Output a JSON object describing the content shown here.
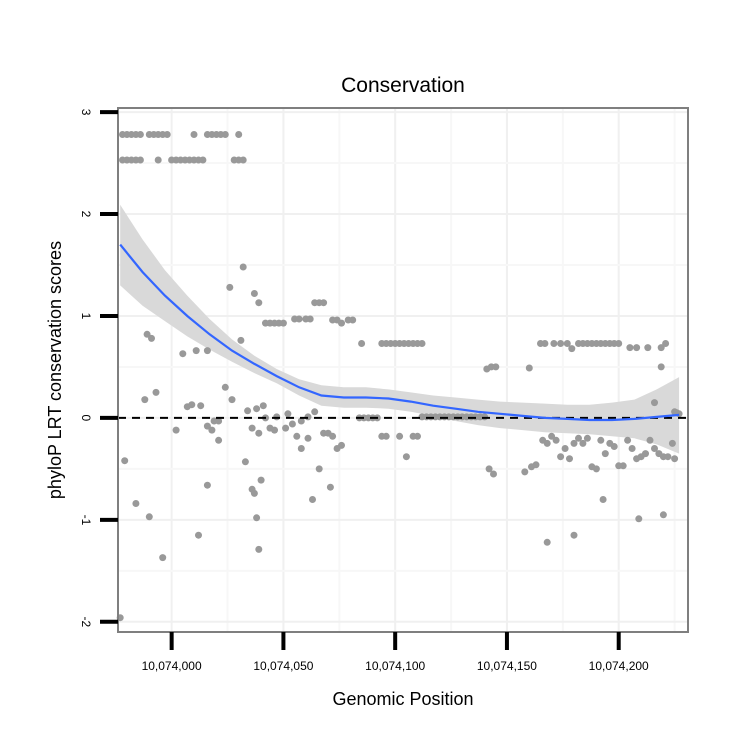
{
  "chart_data": {
    "type": "scatter",
    "title": "Conservation",
    "xlabel": "Genomic Position",
    "ylabel": "phyloP LRT conservation scores",
    "xlim": [
      10073976,
      10074231
    ],
    "ylim": [
      -2.1,
      3.04
    ],
    "x_ticks": [
      10074000,
      10074050,
      10074100,
      10074150,
      10074200
    ],
    "x_tick_labels": [
      "10,074,000",
      "10,074,050",
      "10,074,100",
      "10,074,150",
      "10,074,200"
    ],
    "y_ticks": [
      -2,
      -1,
      0,
      1,
      2,
      3
    ],
    "y_tick_labels": [
      "-2",
      "-1",
      "0",
      "1",
      "2",
      "3"
    ],
    "reference_line_y": 0,
    "point_color": "#999999",
    "smooth_color": "#3366ff",
    "ribbon_color": "#d9d9d9",
    "points": [
      [
        10073978,
        2.78
      ],
      [
        10073980,
        2.78
      ],
      [
        10073982,
        2.78
      ],
      [
        10073984,
        2.78
      ],
      [
        10073986,
        2.78
      ],
      [
        10073990,
        2.78
      ],
      [
        10073992,
        2.78
      ],
      [
        10073994,
        2.78
      ],
      [
        10073996,
        2.78
      ],
      [
        10073998,
        2.78
      ],
      [
        10074010,
        2.78
      ],
      [
        10074016,
        2.78
      ],
      [
        10074018,
        2.78
      ],
      [
        10074020,
        2.78
      ],
      [
        10074022,
        2.78
      ],
      [
        10074024,
        2.78
      ],
      [
        10074030,
        2.78
      ],
      [
        10073978,
        2.53
      ],
      [
        10073980,
        2.53
      ],
      [
        10073982,
        2.53
      ],
      [
        10073984,
        2.53
      ],
      [
        10073986,
        2.53
      ],
      [
        10073994,
        2.53
      ],
      [
        10074000,
        2.53
      ],
      [
        10074002,
        2.53
      ],
      [
        10074004,
        2.53
      ],
      [
        10074006,
        2.53
      ],
      [
        10074008,
        2.53
      ],
      [
        10074010,
        2.53
      ],
      [
        10074012,
        2.53
      ],
      [
        10074014,
        2.53
      ],
      [
        10074028,
        2.53
      ],
      [
        10074030,
        2.53
      ],
      [
        10074032,
        2.53
      ],
      [
        10074032,
        1.48
      ],
      [
        10074026,
        1.28
      ],
      [
        10074037,
        1.22
      ],
      [
        10074039,
        1.13
      ],
      [
        10074042,
        0.93
      ],
      [
        10074044,
        0.93
      ],
      [
        10074046,
        0.93
      ],
      [
        10074048,
        0.93
      ],
      [
        10074050,
        0.93
      ],
      [
        10074055,
        0.97
      ],
      [
        10074057,
        0.97
      ],
      [
        10074060,
        0.97
      ],
      [
        10074062,
        0.97
      ],
      [
        10074064,
        1.13
      ],
      [
        10074066,
        1.13
      ],
      [
        10074068,
        1.13
      ],
      [
        10074072,
        0.96
      ],
      [
        10074074,
        0.96
      ],
      [
        10074079,
        0.96
      ],
      [
        10074081,
        0.96
      ],
      [
        10074076,
        0.93
      ],
      [
        10074085,
        0.73
      ],
      [
        10073989,
        0.82
      ],
      [
        10073991,
        0.78
      ],
      [
        10074005,
        0.63
      ],
      [
        10074011,
        0.66
      ],
      [
        10074016,
        0.66
      ],
      [
        10074031,
        0.76
      ],
      [
        10074013,
        0.12
      ],
      [
        10073988,
        0.18
      ],
      [
        10073993,
        0.25
      ],
      [
        10074007,
        0.11
      ],
      [
        10074009,
        0.13
      ],
      [
        10074024,
        0.3
      ],
      [
        10074027,
        0.18
      ],
      [
        10074034,
        0.07
      ],
      [
        10074038,
        0.09
      ],
      [
        10074041,
        0.12
      ],
      [
        10074019,
        -0.03
      ],
      [
        10074021,
        -0.03
      ],
      [
        10074042,
        0.0
      ],
      [
        10074047,
        0.01
      ],
      [
        10074052,
        0.04
      ],
      [
        10074054,
        -0.06
      ],
      [
        10074058,
        -0.03
      ],
      [
        10074061,
        0.01
      ],
      [
        10074064,
        0.06
      ],
      [
        10074084,
        0.0
      ],
      [
        10074086,
        0.0
      ],
      [
        10074088,
        0.0
      ],
      [
        10074090,
        0.0
      ],
      [
        10074092,
        0.0
      ],
      [
        10074016,
        -0.08
      ],
      [
        10074002,
        -0.12
      ],
      [
        10074018,
        -0.12
      ],
      [
        10074021,
        -0.22
      ],
      [
        10074036,
        -0.1
      ],
      [
        10074039,
        -0.15
      ],
      [
        10074044,
        -0.1
      ],
      [
        10074046,
        -0.12
      ],
      [
        10074051,
        -0.1
      ],
      [
        10074056,
        -0.18
      ],
      [
        10074058,
        -0.3
      ],
      [
        10074061,
        -0.2
      ],
      [
        10074068,
        -0.15
      ],
      [
        10074070,
        -0.15
      ],
      [
        10074072,
        -0.18
      ],
      [
        10074074,
        -0.3
      ],
      [
        10074076,
        -0.27
      ],
      [
        10074066,
        -0.5
      ],
      [
        10074071,
        -0.68
      ],
      [
        10074063,
        -0.8
      ],
      [
        10073979,
        -0.42
      ],
      [
        10074033,
        -0.43
      ],
      [
        10074040,
        -0.61
      ],
      [
        10074036,
        -0.7
      ],
      [
        10074037,
        -0.74
      ],
      [
        10074016,
        -0.66
      ],
      [
        10073984,
        -0.84
      ],
      [
        10073990,
        -0.97
      ],
      [
        10074012,
        -1.15
      ],
      [
        10074038,
        -0.98
      ],
      [
        10073996,
        -1.37
      ],
      [
        10074039,
        -1.29
      ],
      [
        10073977,
        -1.96
      ],
      [
        10074094,
        0.73
      ],
      [
        10074096,
        0.73
      ],
      [
        10074098,
        0.73
      ],
      [
        10074100,
        0.73
      ],
      [
        10074102,
        0.73
      ],
      [
        10074104,
        0.73
      ],
      [
        10074106,
        0.73
      ],
      [
        10074108,
        0.73
      ],
      [
        10074110,
        0.73
      ],
      [
        10074112,
        0.73
      ],
      [
        10074094,
        -0.18
      ],
      [
        10074096,
        -0.18
      ],
      [
        10074102,
        -0.18
      ],
      [
        10074108,
        -0.18
      ],
      [
        10074110,
        -0.18
      ],
      [
        10074105,
        -0.38
      ],
      [
        10074112,
        0.01
      ],
      [
        10074114,
        0.01
      ],
      [
        10074116,
        0.01
      ],
      [
        10074118,
        0.01
      ],
      [
        10074120,
        0.01
      ],
      [
        10074122,
        0.01
      ],
      [
        10074124,
        0.01
      ],
      [
        10074126,
        0.01
      ],
      [
        10074128,
        0.01
      ],
      [
        10074130,
        0.01
      ],
      [
        10074132,
        0.01
      ],
      [
        10074134,
        0.01
      ],
      [
        10074136,
        0.01
      ],
      [
        10074138,
        0.01
      ],
      [
        10074140,
        0.01
      ],
      [
        10074141,
        0.48
      ],
      [
        10074143,
        0.5
      ],
      [
        10074145,
        0.5
      ],
      [
        10074142,
        -0.5
      ],
      [
        10074144,
        -0.55
      ],
      [
        10074160,
        0.49
      ],
      [
        10074165,
        0.73
      ],
      [
        10074167,
        0.73
      ],
      [
        10074171,
        0.73
      ],
      [
        10074174,
        0.73
      ],
      [
        10074177,
        0.73
      ],
      [
        10074179,
        0.68
      ],
      [
        10074182,
        0.73
      ],
      [
        10074184,
        0.73
      ],
      [
        10074186,
        0.73
      ],
      [
        10074188,
        0.73
      ],
      [
        10074190,
        0.73
      ],
      [
        10074192,
        0.73
      ],
      [
        10074194,
        0.73
      ],
      [
        10074196,
        0.73
      ],
      [
        10074198,
        0.73
      ],
      [
        10074200,
        0.73
      ],
      [
        10074205,
        0.69
      ],
      [
        10074208,
        0.69
      ],
      [
        10074213,
        0.69
      ],
      [
        10074219,
        0.69
      ],
      [
        10074221,
        0.73
      ],
      [
        10074219,
        0.5
      ],
      [
        10074216,
        0.15
      ],
      [
        10074158,
        -0.53
      ],
      [
        10074161,
        -0.48
      ],
      [
        10074163,
        -0.46
      ],
      [
        10074166,
        -0.22
      ],
      [
        10074168,
        -0.25
      ],
      [
        10074170,
        -0.18
      ],
      [
        10074172,
        -0.22
      ],
      [
        10074174,
        -0.38
      ],
      [
        10074176,
        -0.3
      ],
      [
        10074178,
        -0.4
      ],
      [
        10074180,
        -0.25
      ],
      [
        10074182,
        -0.2
      ],
      [
        10074184,
        -0.25
      ],
      [
        10074186,
        -0.2
      ],
      [
        10074188,
        -0.48
      ],
      [
        10074190,
        -0.5
      ],
      [
        10074192,
        -0.22
      ],
      [
        10074194,
        -0.35
      ],
      [
        10074196,
        -0.25
      ],
      [
        10074198,
        -0.28
      ],
      [
        10074200,
        -0.47
      ],
      [
        10074202,
        -0.47
      ],
      [
        10074204,
        -0.22
      ],
      [
        10074206,
        -0.3
      ],
      [
        10074208,
        -0.4
      ],
      [
        10074210,
        -0.38
      ],
      [
        10074212,
        -0.35
      ],
      [
        10074214,
        -0.22
      ],
      [
        10074216,
        -0.3
      ],
      [
        10074218,
        -0.35
      ],
      [
        10074220,
        -0.38
      ],
      [
        10074222,
        -0.38
      ],
      [
        10074224,
        -0.25
      ],
      [
        10074225,
        -0.4
      ],
      [
        10074168,
        -1.22
      ],
      [
        10074180,
        -1.15
      ],
      [
        10074193,
        -0.8
      ],
      [
        10074209,
        -0.99
      ],
      [
        10074220,
        -0.95
      ],
      [
        10074225,
        0.06
      ],
      [
        10074226,
        0.05
      ],
      [
        10074227,
        0.04
      ]
    ],
    "smooth_line": [
      [
        10073977,
        1.7
      ],
      [
        10073987,
        1.43
      ],
      [
        10073997,
        1.2
      ],
      [
        10074007,
        1.0
      ],
      [
        10074017,
        0.82
      ],
      [
        10074027,
        0.66
      ],
      [
        10074037,
        0.53
      ],
      [
        10074047,
        0.41
      ],
      [
        10074057,
        0.3
      ],
      [
        10074067,
        0.22
      ],
      [
        10074077,
        0.2
      ],
      [
        10074087,
        0.2
      ],
      [
        10074097,
        0.19
      ],
      [
        10074107,
        0.16
      ],
      [
        10074117,
        0.12
      ],
      [
        10074127,
        0.09
      ],
      [
        10074137,
        0.06
      ],
      [
        10074147,
        0.04
      ],
      [
        10074157,
        0.02
      ],
      [
        10074167,
        0.0
      ],
      [
        10074177,
        -0.01
      ],
      [
        10074187,
        -0.02
      ],
      [
        10074197,
        -0.02
      ],
      [
        10074207,
        -0.01
      ],
      [
        10074217,
        0.01
      ],
      [
        10074227,
        0.03
      ]
    ],
    "smooth_upper": [
      [
        10073977,
        2.09
      ],
      [
        10073987,
        1.75
      ],
      [
        10073997,
        1.45
      ],
      [
        10074007,
        1.2
      ],
      [
        10074017,
        0.97
      ],
      [
        10074027,
        0.77
      ],
      [
        10074037,
        0.61
      ],
      [
        10074047,
        0.48
      ],
      [
        10074057,
        0.38
      ],
      [
        10074067,
        0.32
      ],
      [
        10074077,
        0.3
      ],
      [
        10074087,
        0.3
      ],
      [
        10074097,
        0.28
      ],
      [
        10074107,
        0.25
      ],
      [
        10074117,
        0.22
      ],
      [
        10074127,
        0.2
      ],
      [
        10074137,
        0.18
      ],
      [
        10074147,
        0.16
      ],
      [
        10074157,
        0.15
      ],
      [
        10074167,
        0.14
      ],
      [
        10074177,
        0.13
      ],
      [
        10074187,
        0.13
      ],
      [
        10074197,
        0.15
      ],
      [
        10074207,
        0.18
      ],
      [
        10074217,
        0.28
      ],
      [
        10074227,
        0.4
      ]
    ],
    "smooth_lower": [
      [
        10073977,
        1.3
      ],
      [
        10073987,
        1.1
      ],
      [
        10073997,
        0.95
      ],
      [
        10074007,
        0.8
      ],
      [
        10074017,
        0.67
      ],
      [
        10074027,
        0.55
      ],
      [
        10074037,
        0.44
      ],
      [
        10074047,
        0.34
      ],
      [
        10074057,
        0.22
      ],
      [
        10074067,
        0.12
      ],
      [
        10074077,
        0.1
      ],
      [
        10074087,
        0.1
      ],
      [
        10074097,
        0.09
      ],
      [
        10074107,
        0.06
      ],
      [
        10074117,
        0.02
      ],
      [
        10074127,
        -0.03
      ],
      [
        10074137,
        -0.07
      ],
      [
        10074147,
        -0.1
      ],
      [
        10074157,
        -0.12
      ],
      [
        10074167,
        -0.14
      ],
      [
        10074177,
        -0.15
      ],
      [
        10074187,
        -0.16
      ],
      [
        10074197,
        -0.18
      ],
      [
        10074207,
        -0.2
      ],
      [
        10074217,
        -0.26
      ],
      [
        10074227,
        -0.35
      ]
    ]
  }
}
